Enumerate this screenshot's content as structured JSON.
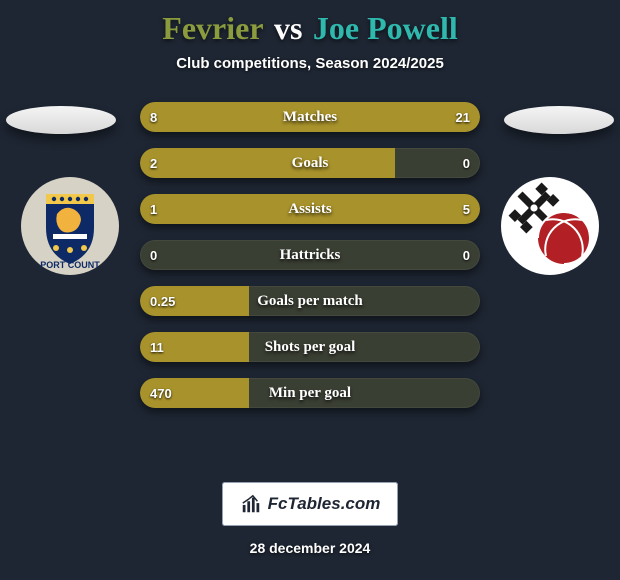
{
  "title": {
    "player1": "Fevrier",
    "vs": "vs",
    "player2": "Joe Powell",
    "player1_color": "#8b9c3e",
    "player2_color": "#2fb8ad"
  },
  "subtitle": "Club competitions, Season 2024/2025",
  "date": "28 december 2024",
  "watermark": "FcTables.com",
  "colors": {
    "left_bar": "#a8922b",
    "right_bar": "#a8922b",
    "track": "#3a3f33",
    "bg": "#1e2633"
  },
  "chip_color": "#e6e6e6",
  "crest_left": {
    "ring": "#d7d2c6",
    "shield": "#0e2a66",
    "accent": "#f2c84b",
    "lion": "#f1b23e",
    "band_text": "PORT COUNT"
  },
  "crest_right": {
    "ring": "#ffffff",
    "mill": "#1a1a1a",
    "ball": "#b21f24"
  },
  "bars": [
    {
      "label": "Matches",
      "left_val": "8",
      "right_val": "21",
      "left_pct": 27.6,
      "right_pct": 72.4
    },
    {
      "label": "Goals",
      "left_val": "2",
      "right_val": "0",
      "left_pct": 75.0,
      "right_pct": 0.0
    },
    {
      "label": "Assists",
      "left_val": "1",
      "right_val": "5",
      "left_pct": 16.7,
      "right_pct": 83.3
    },
    {
      "label": "Hattricks",
      "left_val": "0",
      "right_val": "0",
      "left_pct": 0.0,
      "right_pct": 0.0
    },
    {
      "label": "Goals per match",
      "left_val": "0.25",
      "right_val": "",
      "left_pct": 32.0,
      "right_pct": 0.0
    },
    {
      "label": "Shots per goal",
      "left_val": "11",
      "right_val": "",
      "left_pct": 32.0,
      "right_pct": 0.0
    },
    {
      "label": "Min per goal",
      "left_val": "470",
      "right_val": "",
      "left_pct": 32.0,
      "right_pct": 0.0
    }
  ]
}
